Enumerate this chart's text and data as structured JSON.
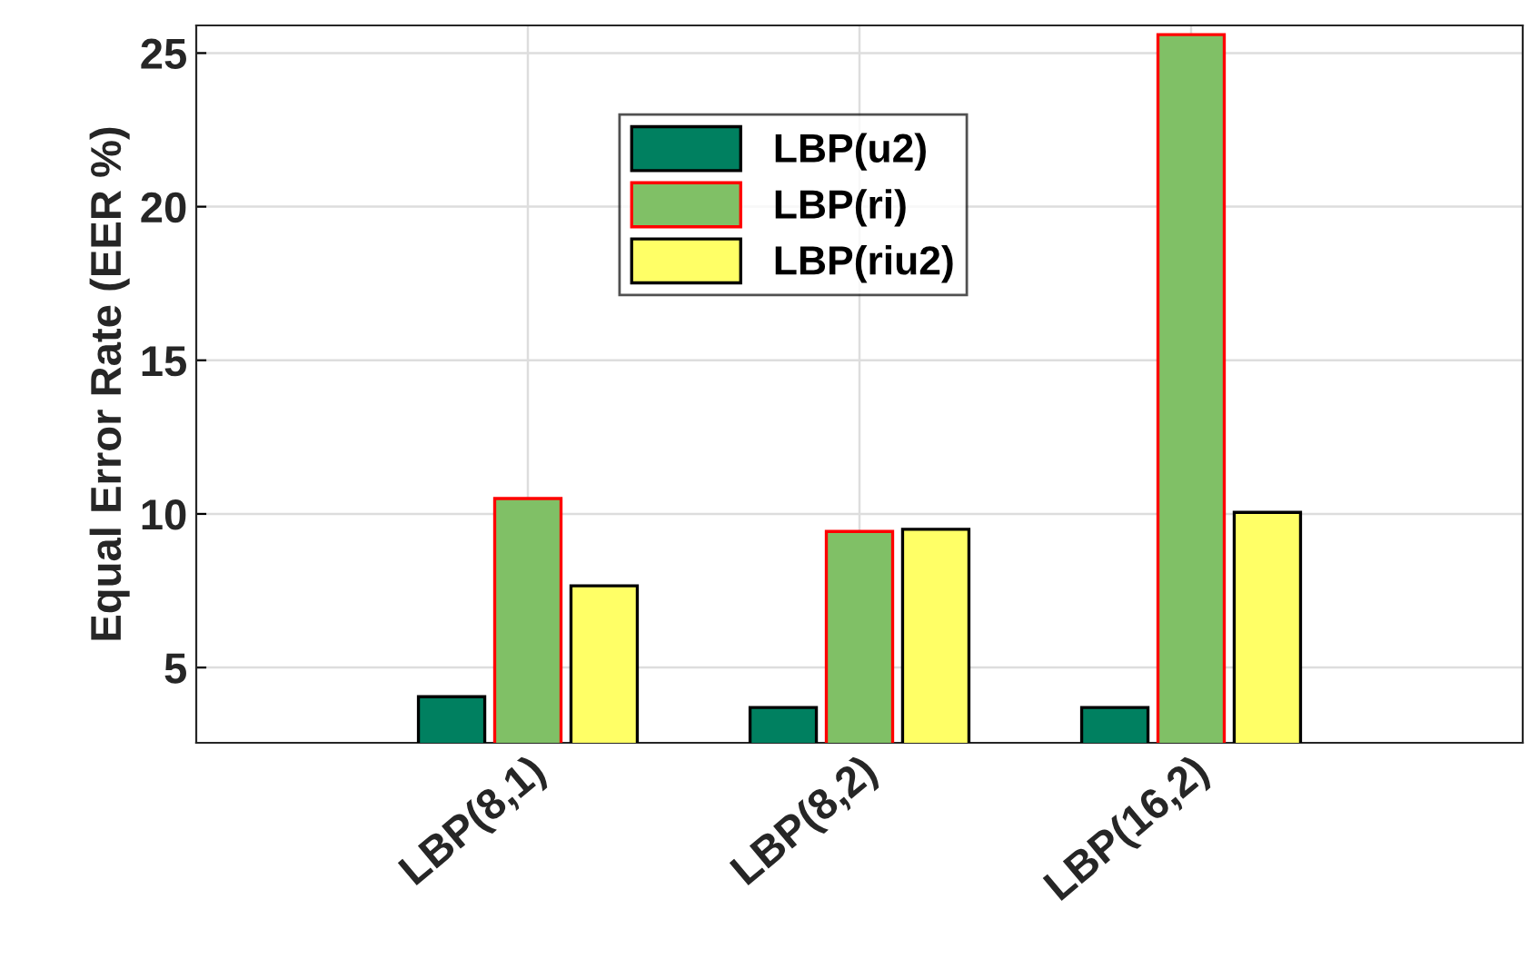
{
  "chart_data": {
    "type": "bar",
    "ylabel": "Equal Error Rate (EER %)",
    "categories": [
      "LBP(8,1)",
      "LBP(8,2)",
      "LBP(16,2)"
    ],
    "series": [
      {
        "name": "LBP(u2)",
        "color": "#008060",
        "values": [
          4.05,
          3.7,
          3.7
        ]
      },
      {
        "name": "LBP(ri)",
        "color": "#80c066",
        "values": [
          10.5,
          9.43,
          25.6
        ]
      },
      {
        "name": "LBP(riu2)",
        "color": "#ffff66",
        "values": [
          7.66,
          9.5,
          10.05
        ]
      }
    ],
    "ylim": [
      2.55,
      25.9
    ],
    "yticks": [
      5,
      10,
      15,
      20,
      25
    ],
    "grid": true,
    "legend": "top"
  }
}
